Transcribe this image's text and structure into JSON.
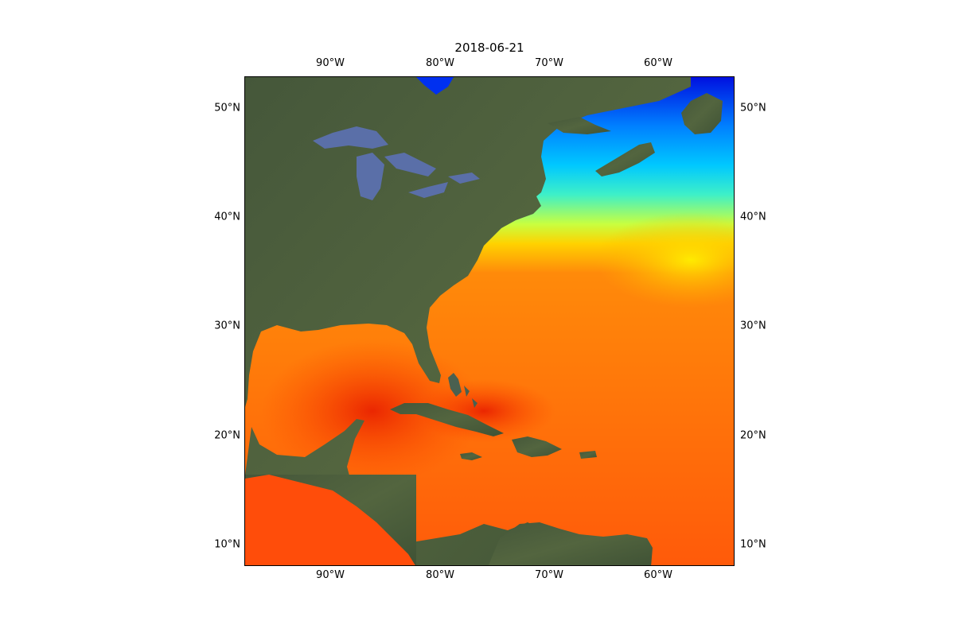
{
  "title": "2018-06-21",
  "axes": {
    "lon_ticks": [
      "90°W",
      "80°W",
      "70°W",
      "60°W"
    ],
    "lat_ticks": [
      "50°N",
      "40°N",
      "30°N",
      "20°N",
      "10°N"
    ]
  },
  "colors": {
    "land": "#4a5e3c",
    "lakes": "#5a6fa8",
    "sst_warm": "#ff5a0a",
    "sst_hot": "#e81e00",
    "sst_mid": "#ffd200",
    "sst_cool": "#3ef0c8",
    "sst_cold": "#0080ff",
    "sst_coldest": "#0010e0"
  }
}
